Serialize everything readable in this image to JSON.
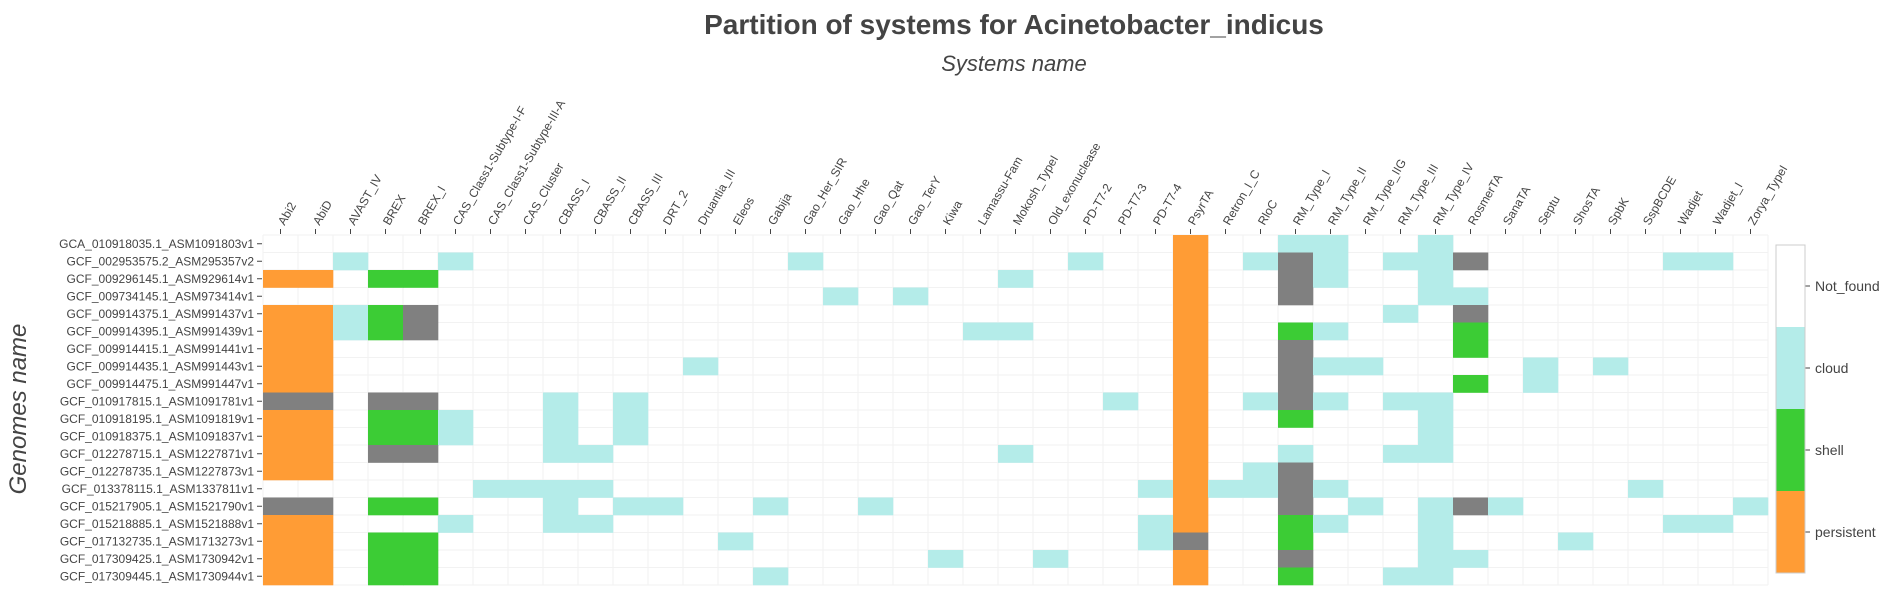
{
  "chart_data": {
    "type": "heatmap",
    "title": "Partition of systems for Acinetobacter_indicus",
    "subtitle": "Systems name",
    "ylabel": "Genomes name",
    "x": [
      "Abi2",
      "AbiD",
      "AVAST_IV",
      "BREX",
      "BREX_I",
      "CAS_Class1-Subtype-I-F",
      "CAS_Class1-Subtype-III-A",
      "CAS_Cluster",
      "CBASS_I",
      "CBASS_II",
      "CBASS_III",
      "DRT_2",
      "Druantia_III",
      "Eleos",
      "Gabija",
      "Gao_Her_SIR",
      "Gao_Hhe",
      "Gao_Qat",
      "Gao_TerY",
      "Kiwa",
      "Lamassu-Fam",
      "Mokosh_TypeI",
      "Old_exonuclease",
      "PD-T7-2",
      "PD-T7-3",
      "PD-T7-4",
      "PsyrTA",
      "Retron_I_C",
      "RloC",
      "RM_Type_I",
      "RM_Type_II",
      "RM_Type_IIG",
      "RM_Type_III",
      "RM_Type_IV",
      "RosmerTA",
      "SanaTA",
      "Septu",
      "ShosTA",
      "SpbK",
      "SspBCDE",
      "Wadjet",
      "Wadjet_I",
      "Zorya_TypeI"
    ],
    "y": [
      "GCA_010918035.1_ASM1091803v1",
      "GCF_002953575.2_ASM295357v2",
      "GCF_009296145.1_ASM929614v1",
      "GCF_009734145.1_ASM973414v1",
      "GCF_009914375.1_ASM991437v1",
      "GCF_009914395.1_ASM991439v1",
      "GCF_009914415.1_ASM991441v1",
      "GCF_009914435.1_ASM991443v1",
      "GCF_009914475.1_ASM991447v1",
      "GCF_010917815.1_ASM1091781v1",
      "GCF_010918195.1_ASM1091819v1",
      "GCF_010918375.1_ASM1091837v1",
      "GCF_012278715.1_ASM1227871v1",
      "GCF_012278735.1_ASM1227873v1",
      "GCF_013378115.1_ASM1337811v1",
      "GCF_015217905.1_ASM1521790v1",
      "GCF_015218885.1_ASM1521888v1",
      "GCF_017132735.1_ASM1713273v1",
      "GCF_017309425.1_ASM1730942v1",
      "GCF_017309445.1_ASM1730944v1"
    ],
    "value_codes": {
      "0": "Not_found",
      "1": "cloud",
      "2": "shell",
      "3": "persistent",
      "4": "gray"
    },
    "z": [
      [
        0,
        0,
        0,
        0,
        0,
        0,
        0,
        0,
        0,
        0,
        0,
        0,
        0,
        0,
        0,
        0,
        0,
        0,
        0,
        0,
        0,
        0,
        0,
        0,
        0,
        0,
        3,
        0,
        0,
        1,
        1,
        0,
        0,
        1,
        0,
        0,
        0,
        0,
        0,
        0,
        0,
        0,
        0
      ],
      [
        0,
        0,
        1,
        0,
        0,
        1,
        0,
        0,
        0,
        0,
        0,
        0,
        0,
        0,
        0,
        1,
        0,
        0,
        0,
        0,
        0,
        0,
        0,
        1,
        0,
        0,
        3,
        0,
        1,
        4,
        1,
        0,
        1,
        1,
        4,
        0,
        0,
        0,
        0,
        0,
        1,
        1,
        0
      ],
      [
        3,
        3,
        0,
        2,
        2,
        0,
        0,
        0,
        0,
        0,
        0,
        0,
        0,
        0,
        0,
        0,
        0,
        0,
        0,
        0,
        0,
        1,
        0,
        0,
        0,
        0,
        3,
        0,
        0,
        4,
        1,
        0,
        0,
        1,
        0,
        0,
        0,
        0,
        0,
        0,
        0,
        0,
        0
      ],
      [
        0,
        0,
        0,
        0,
        0,
        0,
        0,
        0,
        0,
        0,
        0,
        0,
        0,
        0,
        0,
        0,
        1,
        0,
        1,
        0,
        0,
        0,
        0,
        0,
        0,
        0,
        3,
        0,
        0,
        4,
        0,
        0,
        0,
        1,
        1,
        0,
        0,
        0,
        0,
        0,
        0,
        0,
        0
      ],
      [
        3,
        3,
        1,
        2,
        4,
        0,
        0,
        0,
        0,
        0,
        0,
        0,
        0,
        0,
        0,
        0,
        0,
        0,
        0,
        0,
        0,
        0,
        0,
        0,
        0,
        0,
        3,
        0,
        0,
        0,
        0,
        0,
        1,
        0,
        4,
        0,
        0,
        0,
        0,
        0,
        0,
        0,
        0
      ],
      [
        3,
        3,
        1,
        2,
        4,
        0,
        0,
        0,
        0,
        0,
        0,
        0,
        0,
        0,
        0,
        0,
        0,
        0,
        0,
        0,
        1,
        1,
        0,
        0,
        0,
        0,
        3,
        0,
        0,
        2,
        1,
        0,
        0,
        0,
        2,
        0,
        0,
        0,
        0,
        0,
        0,
        0,
        0
      ],
      [
        3,
        3,
        0,
        0,
        0,
        0,
        0,
        0,
        0,
        0,
        0,
        0,
        0,
        0,
        0,
        0,
        0,
        0,
        0,
        0,
        0,
        0,
        0,
        0,
        0,
        0,
        3,
        0,
        0,
        4,
        0,
        0,
        0,
        0,
        2,
        0,
        0,
        0,
        0,
        0,
        0,
        0,
        0
      ],
      [
        3,
        3,
        0,
        0,
        0,
        0,
        0,
        0,
        0,
        0,
        0,
        0,
        1,
        0,
        0,
        0,
        0,
        0,
        0,
        0,
        0,
        0,
        0,
        0,
        0,
        0,
        3,
        0,
        0,
        4,
        1,
        1,
        0,
        0,
        0,
        0,
        1,
        0,
        1,
        0,
        0,
        0,
        0
      ],
      [
        3,
        3,
        0,
        0,
        0,
        0,
        0,
        0,
        0,
        0,
        0,
        0,
        0,
        0,
        0,
        0,
        0,
        0,
        0,
        0,
        0,
        0,
        0,
        0,
        0,
        0,
        3,
        0,
        0,
        4,
        0,
        0,
        0,
        0,
        2,
        0,
        1,
        0,
        0,
        0,
        0,
        0,
        0
      ],
      [
        4,
        4,
        0,
        4,
        4,
        0,
        0,
        0,
        1,
        0,
        1,
        0,
        0,
        0,
        0,
        0,
        0,
        0,
        0,
        0,
        0,
        0,
        0,
        0,
        1,
        0,
        3,
        0,
        1,
        4,
        1,
        0,
        1,
        1,
        0,
        0,
        0,
        0,
        0,
        0,
        0,
        0,
        0
      ],
      [
        3,
        3,
        0,
        2,
        2,
        1,
        0,
        0,
        1,
        0,
        1,
        0,
        0,
        0,
        0,
        0,
        0,
        0,
        0,
        0,
        0,
        0,
        0,
        0,
        0,
        0,
        3,
        0,
        0,
        2,
        0,
        0,
        0,
        1,
        0,
        0,
        0,
        0,
        0,
        0,
        0,
        0,
        0
      ],
      [
        3,
        3,
        0,
        2,
        2,
        1,
        0,
        0,
        1,
        0,
        1,
        0,
        0,
        0,
        0,
        0,
        0,
        0,
        0,
        0,
        0,
        0,
        0,
        0,
        0,
        0,
        3,
        0,
        0,
        0,
        0,
        0,
        0,
        1,
        0,
        0,
        0,
        0,
        0,
        0,
        0,
        0,
        0
      ],
      [
        3,
        3,
        0,
        4,
        4,
        0,
        0,
        0,
        1,
        1,
        0,
        0,
        0,
        0,
        0,
        0,
        0,
        0,
        0,
        0,
        0,
        1,
        0,
        0,
        0,
        0,
        3,
        0,
        0,
        1,
        0,
        0,
        1,
        1,
        0,
        0,
        0,
        0,
        0,
        0,
        0,
        0,
        0
      ],
      [
        3,
        3,
        0,
        0,
        0,
        0,
        0,
        0,
        0,
        0,
        0,
        0,
        0,
        0,
        0,
        0,
        0,
        0,
        0,
        0,
        0,
        0,
        0,
        0,
        0,
        0,
        3,
        0,
        1,
        4,
        0,
        0,
        0,
        0,
        0,
        0,
        0,
        0,
        0,
        0,
        0,
        0,
        0
      ],
      [
        0,
        0,
        0,
        0,
        0,
        0,
        1,
        1,
        1,
        1,
        0,
        0,
        0,
        0,
        0,
        0,
        0,
        0,
        0,
        0,
        0,
        0,
        0,
        0,
        0,
        1,
        3,
        1,
        1,
        4,
        1,
        0,
        0,
        0,
        0,
        0,
        0,
        0,
        0,
        1,
        0,
        0,
        0
      ],
      [
        4,
        4,
        0,
        2,
        2,
        0,
        0,
        0,
        1,
        0,
        1,
        1,
        0,
        0,
        1,
        0,
        0,
        1,
        0,
        0,
        0,
        0,
        0,
        0,
        0,
        0,
        3,
        0,
        0,
        4,
        0,
        1,
        0,
        1,
        4,
        1,
        0,
        0,
        0,
        0,
        0,
        0,
        1
      ],
      [
        3,
        3,
        0,
        0,
        0,
        1,
        0,
        0,
        1,
        1,
        0,
        0,
        0,
        0,
        0,
        0,
        0,
        0,
        0,
        0,
        0,
        0,
        0,
        0,
        0,
        1,
        3,
        0,
        0,
        2,
        1,
        0,
        0,
        1,
        0,
        0,
        0,
        0,
        0,
        0,
        1,
        1,
        0
      ],
      [
        3,
        3,
        0,
        2,
        2,
        0,
        0,
        0,
        0,
        0,
        0,
        0,
        0,
        1,
        0,
        0,
        0,
        0,
        0,
        0,
        0,
        0,
        0,
        0,
        0,
        1,
        4,
        0,
        0,
        2,
        0,
        0,
        0,
        1,
        0,
        0,
        0,
        1,
        0,
        0,
        0,
        0,
        0
      ],
      [
        3,
        3,
        0,
        2,
        2,
        0,
        0,
        0,
        0,
        0,
        0,
        0,
        0,
        0,
        0,
        0,
        0,
        0,
        0,
        1,
        0,
        0,
        1,
        0,
        0,
        0,
        3,
        0,
        0,
        4,
        0,
        0,
        0,
        1,
        1,
        0,
        0,
        0,
        0,
        0,
        0,
        0,
        0
      ],
      [
        3,
        3,
        0,
        2,
        2,
        0,
        0,
        0,
        0,
        0,
        0,
        0,
        0,
        0,
        1,
        0,
        0,
        0,
        0,
        0,
        0,
        0,
        0,
        0,
        0,
        0,
        3,
        0,
        0,
        2,
        0,
        0,
        1,
        1,
        0,
        0,
        0,
        0,
        0,
        0,
        0,
        0,
        0
      ]
    ],
    "colors": {
      "0": "#ffffff",
      "1": "#b4ece9",
      "2": "#3ccc35",
      "3": "#ff9c35",
      "4": "#808080"
    },
    "legend": {
      "labels": [
        "Not_found",
        "cloud",
        "shell",
        "persistent"
      ],
      "colors": [
        "#ffffff",
        "#b4ece9",
        "#3ccc35",
        "#ff9c35"
      ],
      "placement": "right"
    }
  }
}
